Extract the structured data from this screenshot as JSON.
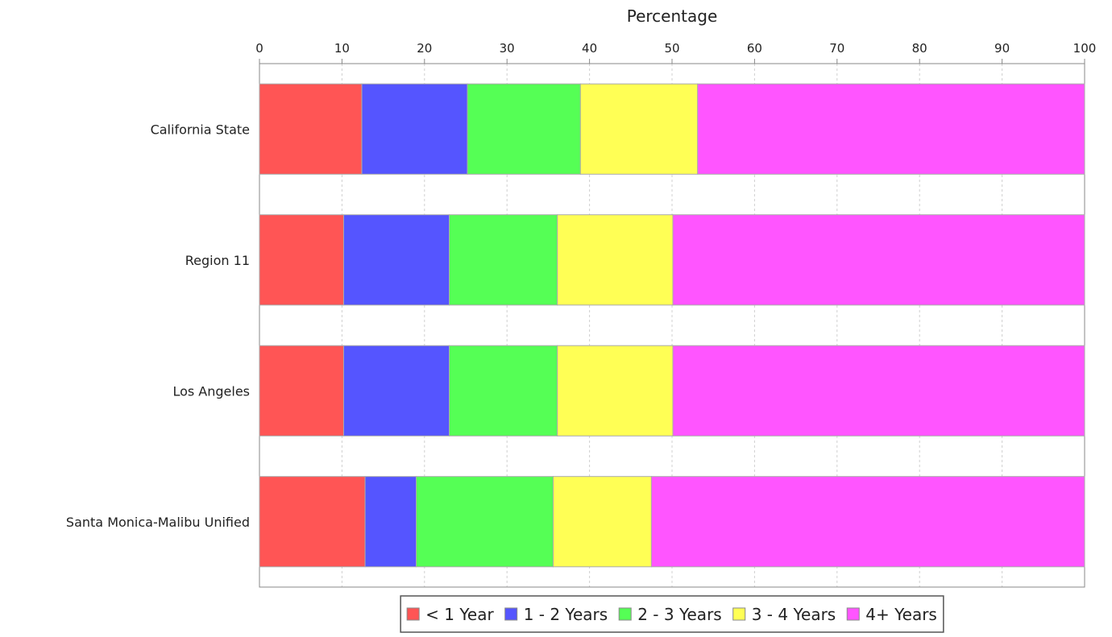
{
  "chart_data": {
    "type": "bar",
    "orientation": "horizontal",
    "stacked": true,
    "xlabel": "Percentage",
    "xaxis_position": "top",
    "xlim": [
      0,
      100
    ],
    "xticks": [
      "0",
      "10",
      "20",
      "30",
      "40",
      "50",
      "60",
      "70",
      "80",
      "90",
      "100"
    ],
    "grid": true,
    "categories": [
      "California State",
      "Region 11",
      "Los Angeles",
      "Santa Monica-Malibu Unified"
    ],
    "series": [
      {
        "name": "< 1 Year",
        "color": "#ff5555",
        "values": [
          12.4,
          10.2,
          10.2,
          12.8
        ]
      },
      {
        "name": "1 - 2 Years",
        "color": "#5555ff",
        "values": [
          12.8,
          12.8,
          12.8,
          6.2
        ]
      },
      {
        "name": "2 - 3 Years",
        "color": "#55ff55",
        "values": [
          13.7,
          13.1,
          13.1,
          16.6
        ]
      },
      {
        "name": "3 - 4 Years",
        "color": "#ffff55",
        "values": [
          14.2,
          14.0,
          14.0,
          11.9
        ]
      },
      {
        "name": "4+ Years",
        "color": "#ff55ff",
        "values": [
          46.9,
          49.9,
          49.9,
          52.5
        ]
      }
    ],
    "legend_position": "bottom"
  }
}
